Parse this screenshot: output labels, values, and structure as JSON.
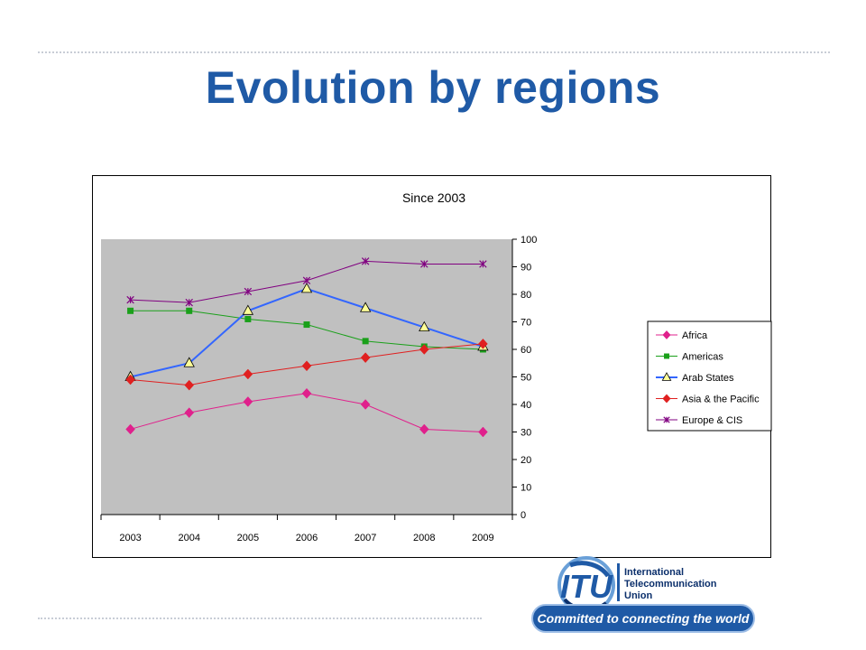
{
  "slide": {
    "title": "Evolution by regions"
  },
  "chart_data": {
    "type": "line",
    "title": "Since 2003",
    "xlabel": "",
    "ylabel": "",
    "categories": [
      "2003",
      "2004",
      "2005",
      "2006",
      "2007",
      "2008",
      "2009"
    ],
    "ylim": [
      0,
      100
    ],
    "yticks": [
      "0",
      "10",
      "20",
      "30",
      "40",
      "50",
      "60",
      "70",
      "80",
      "90",
      "100"
    ],
    "y_axis_side": "right",
    "grid": false,
    "plot_background": "#c0c0c0",
    "legend_position": "right",
    "series": [
      {
        "name": "Africa",
        "color": "#e0208c",
        "marker": "diamond",
        "values": [
          31,
          37,
          41,
          44,
          40,
          31,
          30
        ]
      },
      {
        "name": "Americas",
        "color": "#1aa01a",
        "marker": "square",
        "values": [
          74,
          74,
          71,
          69,
          63,
          61,
          60
        ]
      },
      {
        "name": "Arab States",
        "color": "#3366ff",
        "marker": "triangle",
        "values": [
          50,
          55,
          74,
          82,
          75,
          68,
          61
        ]
      },
      {
        "name": "Asia & the Pacific",
        "color": "#e02020",
        "marker": "diamond",
        "values": [
          49,
          47,
          51,
          54,
          57,
          60,
          62
        ]
      },
      {
        "name": "Europe & CIS",
        "color": "#800080",
        "marker": "star",
        "values": [
          78,
          77,
          81,
          85,
          92,
          91,
          91
        ]
      }
    ]
  },
  "logo": {
    "mark": "ITU",
    "line1": "International",
    "line2": "Telecommunication",
    "line3": "Union",
    "tagline": "Committed to connecting the world",
    "colors": {
      "blue": "#1f5aa6",
      "navy": "#0b2f6b",
      "light": "#6aa0d8"
    }
  }
}
